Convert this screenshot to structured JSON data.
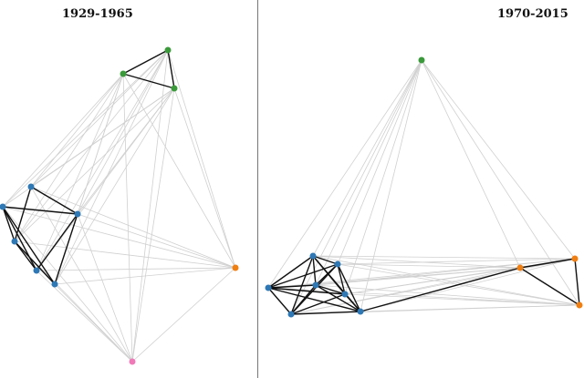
{
  "panels": [
    {
      "title": "1929-1965",
      "nodes": [
        {
          "group": "green"
        },
        {
          "group": "green"
        },
        {
          "group": "green"
        },
        {
          "group": "blue"
        },
        {
          "group": "blue"
        },
        {
          "group": "blue"
        },
        {
          "group": "blue"
        },
        {
          "group": "blue"
        },
        {
          "group": "blue"
        },
        {
          "group": "orange"
        },
        {
          "group": "pink"
        }
      ],
      "strong_edges": [
        [
          0,
          1
        ],
        [
          1,
          2
        ],
        [
          0,
          2
        ],
        [
          3,
          5
        ],
        [
          3,
          6
        ],
        [
          4,
          5
        ],
        [
          4,
          6
        ],
        [
          4,
          7
        ],
        [
          4,
          8
        ],
        [
          5,
          7
        ],
        [
          5,
          8
        ],
        [
          6,
          8
        ],
        [
          6,
          7
        ]
      ]
    },
    {
      "title": "1970-2015",
      "nodes": [
        {
          "group": "green"
        },
        {
          "group": "blue"
        },
        {
          "group": "blue"
        },
        {
          "group": "blue"
        },
        {
          "group": "blue"
        },
        {
          "group": "blue"
        },
        {
          "group": "blue"
        },
        {
          "group": "blue"
        },
        {
          "group": "orange"
        },
        {
          "group": "orange"
        },
        {
          "group": "orange"
        }
      ],
      "strong_edges": [
        [
          1,
          2
        ],
        [
          1,
          3
        ],
        [
          1,
          4
        ],
        [
          1,
          5
        ],
        [
          1,
          6
        ],
        [
          1,
          7
        ],
        [
          2,
          3
        ],
        [
          2,
          4
        ],
        [
          2,
          5
        ],
        [
          2,
          6
        ],
        [
          2,
          7
        ],
        [
          3,
          4
        ],
        [
          3,
          5
        ],
        [
          3,
          6
        ],
        [
          3,
          7
        ],
        [
          4,
          5
        ],
        [
          4,
          6
        ],
        [
          4,
          7
        ],
        [
          5,
          6
        ],
        [
          5,
          7
        ],
        [
          6,
          7
        ],
        [
          7,
          8
        ],
        [
          8,
          10
        ],
        [
          9,
          10
        ],
        [
          8,
          9
        ]
      ]
    }
  ],
  "colors": {
    "green": "#3a9a3a",
    "blue": "#2e78b5",
    "orange": "#f07f12",
    "pink": "#f07ab8",
    "strong_edge": "#111111",
    "weak_edge": "#d0d0d0"
  }
}
